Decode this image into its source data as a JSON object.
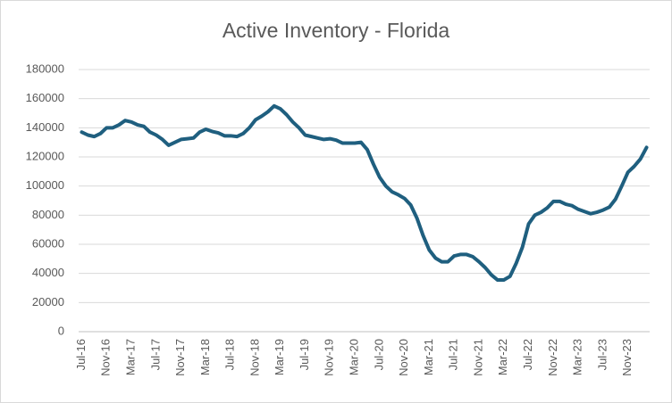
{
  "chart_data": {
    "type": "line",
    "title": "Active Inventory - Florida",
    "categories": [
      "Jul-16",
      null,
      null,
      null,
      "Nov-16",
      null,
      null,
      null,
      "Mar-17",
      null,
      null,
      null,
      "Jul-17",
      null,
      null,
      null,
      "Nov-17",
      null,
      null,
      null,
      "Mar-18",
      null,
      null,
      null,
      "Jul-18",
      null,
      null,
      null,
      "Nov-18",
      null,
      null,
      null,
      "Mar-19",
      null,
      null,
      null,
      "Jul-19",
      null,
      null,
      null,
      "Nov-19",
      null,
      null,
      null,
      "Mar-20",
      null,
      null,
      null,
      "Jul-20",
      null,
      null,
      null,
      "Nov-20",
      null,
      null,
      null,
      "Mar-21",
      null,
      null,
      null,
      "Jul-21",
      null,
      null,
      null,
      "Nov-21",
      null,
      null,
      null,
      "Mar-22",
      null,
      null,
      null,
      "Jul-22",
      null,
      null,
      null,
      "Nov-22",
      null,
      null,
      null,
      "Mar-23",
      null,
      null,
      null,
      "Jul-23",
      null,
      null,
      null,
      "Nov-23",
      null,
      null,
      null
    ],
    "values": [
      137000,
      135000,
      134000,
      136000,
      140000,
      140000,
      142000,
      145000,
      144000,
      142000,
      141000,
      137000,
      135000,
      132000,
      128000,
      130000,
      132000,
      132500,
      133000,
      137000,
      139000,
      137500,
      136500,
      134500,
      134500,
      134000,
      136000,
      140000,
      145500,
      148000,
      151000,
      155000,
      153000,
      149000,
      144000,
      140000,
      135000,
      134000,
      133000,
      132000,
      132500,
      131500,
      129500,
      129500,
      129500,
      130000,
      125000,
      115000,
      106000,
      100000,
      96000,
      94000,
      91500,
      87000,
      78000,
      66000,
      56000,
      50500,
      48000,
      48000,
      52000,
      53000,
      53000,
      51500,
      48000,
      44000,
      39000,
      35500,
      35500,
      38000,
      47000,
      58000,
      74000,
      80000,
      82000,
      85000,
      89500,
      89500,
      87500,
      86500,
      84000,
      82500,
      81000,
      82000,
      83500,
      85500,
      91000,
      100000,
      109500,
      113500,
      118500,
      126500
    ],
    "color": "#1f5f7f",
    "ylim": [
      0,
      180000
    ],
    "yticks": [
      0,
      20000,
      40000,
      60000,
      80000,
      100000,
      120000,
      140000,
      160000,
      180000
    ],
    "grid": true
  }
}
